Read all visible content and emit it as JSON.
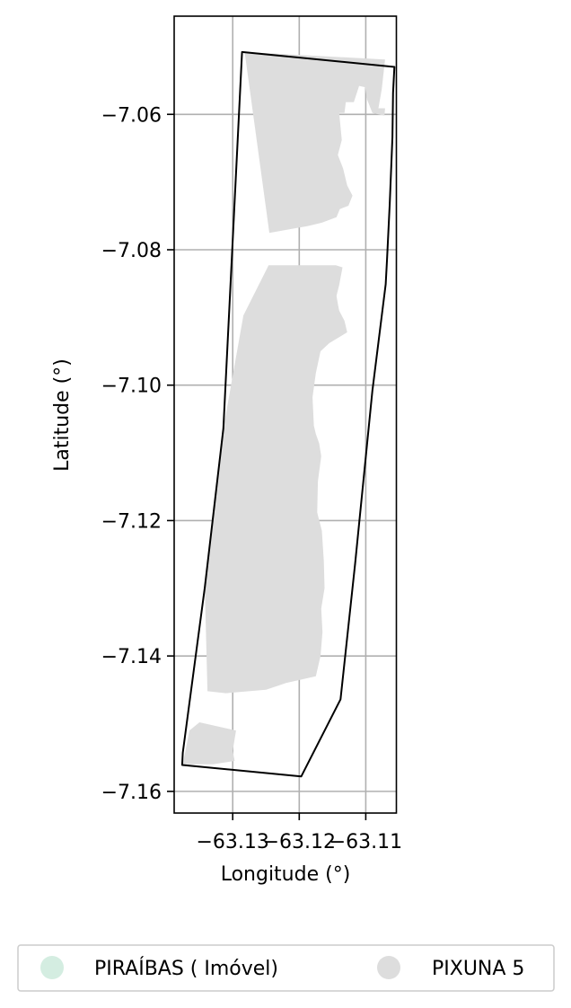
{
  "chart_data": {
    "type": "map",
    "xlabel": "Longitude (°)",
    "ylabel": "Latitude (°)",
    "xlim": [
      -63.1388,
      -63.1054
    ],
    "ylim": [
      -7.1632,
      -7.0455
    ],
    "x_ticks": [
      -63.13,
      -63.12,
      -63.11
    ],
    "x_tick_labels": [
      "−63.13",
      "−63.12",
      "−63.11"
    ],
    "y_ticks": [
      -7.06,
      -7.08,
      -7.1,
      -7.12,
      -7.14,
      -7.16
    ],
    "y_tick_labels": [
      "−7.06",
      "−7.08",
      "−7.10",
      "−7.12",
      "−7.14",
      "−7.16"
    ],
    "grid": true,
    "legend_position": "below",
    "colors": {
      "PIRAIBAS": "#d4ede1",
      "PIXUNA5": "#dddddd",
      "boundary": "#000000",
      "grid": "#b0b0b0"
    },
    "layers": [
      {
        "name": "PIRAÍBAS ( Imóvel)",
        "type": "polygon-outline",
        "color": "#000000",
        "coordinates": [
          [
            -63.1286,
            -7.0508
          ],
          [
            -63.1057,
            -7.053
          ],
          [
            -63.1059,
            -7.0568
          ],
          [
            -63.106,
            -7.0634
          ],
          [
            -63.1064,
            -7.0732
          ],
          [
            -63.1068,
            -7.0814
          ],
          [
            -63.107,
            -7.0851
          ],
          [
            -63.109,
            -7.1008
          ],
          [
            -63.1116,
            -7.1263
          ],
          [
            -63.1138,
            -7.1464
          ],
          [
            -63.1197,
            -7.1578
          ],
          [
            -63.1376,
            -7.1561
          ],
          [
            -63.1375,
            -7.1543
          ],
          [
            -63.1342,
            -7.1299
          ],
          [
            -63.1314,
            -7.1064
          ],
          [
            -63.1286,
            -7.0508
          ]
        ]
      },
      {
        "name": "PIXUNA 5",
        "type": "polygon-fill",
        "color": "#dddddd",
        "polygons": [
          [
            [
              -63.1282,
              -7.0508
            ],
            [
              -63.1071,
              -7.0519
            ],
            [
              -63.1076,
              -7.0563
            ],
            [
              -63.1081,
              -7.0591
            ],
            [
              -63.1071,
              -7.0591
            ],
            [
              -63.1072,
              -7.0602
            ],
            [
              -63.109,
              -7.0598
            ],
            [
              -63.1098,
              -7.0578
            ],
            [
              -63.1101,
              -7.056
            ],
            [
              -63.111,
              -7.0558
            ],
            [
              -63.1118,
              -7.0582
            ],
            [
              -63.113,
              -7.0582
            ],
            [
              -63.1132,
              -7.0598
            ],
            [
              -63.114,
              -7.0598
            ],
            [
              -63.1136,
              -7.0638
            ],
            [
              -63.1142,
              -7.066
            ],
            [
              -63.1134,
              -7.068
            ],
            [
              -63.1128,
              -7.0705
            ],
            [
              -63.112,
              -7.072
            ],
            [
              -63.1126,
              -7.0735
            ],
            [
              -63.1139,
              -7.074
            ],
            [
              -63.1144,
              -7.0752
            ],
            [
              -63.1166,
              -7.076
            ],
            [
              -63.1187,
              -7.0765
            ],
            [
              -63.1245,
              -7.0775
            ],
            [
              -63.1282,
              -7.0508
            ]
          ],
          [
            [
              -63.1246,
              -7.0823
            ],
            [
              -63.1145,
              -7.0823
            ],
            [
              -63.1135,
              -7.0826
            ],
            [
              -63.114,
              -7.0852
            ],
            [
              -63.1144,
              -7.0868
            ],
            [
              -63.1142,
              -7.088
            ],
            [
              -63.114,
              -7.089
            ],
            [
              -63.1132,
              -7.0905
            ],
            [
              -63.1128,
              -7.0922
            ],
            [
              -63.1155,
              -7.0938
            ],
            [
              -63.1168,
              -7.095
            ],
            [
              -63.1175,
              -7.0982
            ],
            [
              -63.118,
              -7.1018
            ],
            [
              -63.1178,
              -7.106
            ],
            [
              -63.1175,
              -7.1072
            ],
            [
              -63.117,
              -7.1086
            ],
            [
              -63.1167,
              -7.1105
            ],
            [
              -63.1172,
              -7.1142
            ],
            [
              -63.1173,
              -7.1188
            ],
            [
              -63.1166,
              -7.1215
            ],
            [
              -63.1163,
              -7.126
            ],
            [
              -63.1162,
              -7.13
            ],
            [
              -63.1167,
              -7.133
            ],
            [
              -63.1165,
              -7.1365
            ],
            [
              -63.1168,
              -7.14
            ],
            [
              -63.1175,
              -7.143
            ],
            [
              -63.122,
              -7.144
            ],
            [
              -63.125,
              -7.145
            ],
            [
              -63.131,
              -7.1455
            ],
            [
              -63.1338,
              -7.1452
            ],
            [
              -63.1342,
              -7.1299
            ],
            [
              -63.1326,
              -7.1165
            ],
            [
              -63.1314,
              -7.1064
            ],
            [
              -63.1284,
              -7.0897
            ],
            [
              -63.1246,
              -7.0823
            ]
          ],
          [
            [
              -63.135,
              -7.1498
            ],
            [
              -63.1295,
              -7.151
            ],
            [
              -63.13,
              -7.154
            ],
            [
              -63.1297,
              -7.1555
            ],
            [
              -63.133,
              -7.156
            ],
            [
              -63.1375,
              -7.156
            ],
            [
              -63.1365,
              -7.151
            ],
            [
              -63.135,
              -7.1498
            ]
          ]
        ]
      }
    ],
    "legend": {
      "entries": [
        {
          "label": "PIRAÍBAS ( Imóvel)",
          "color": "#d4ede1",
          "marker": "circle"
        },
        {
          "label": "PIXUNA 5",
          "color": "#dddddd",
          "marker": "circle"
        }
      ]
    }
  }
}
